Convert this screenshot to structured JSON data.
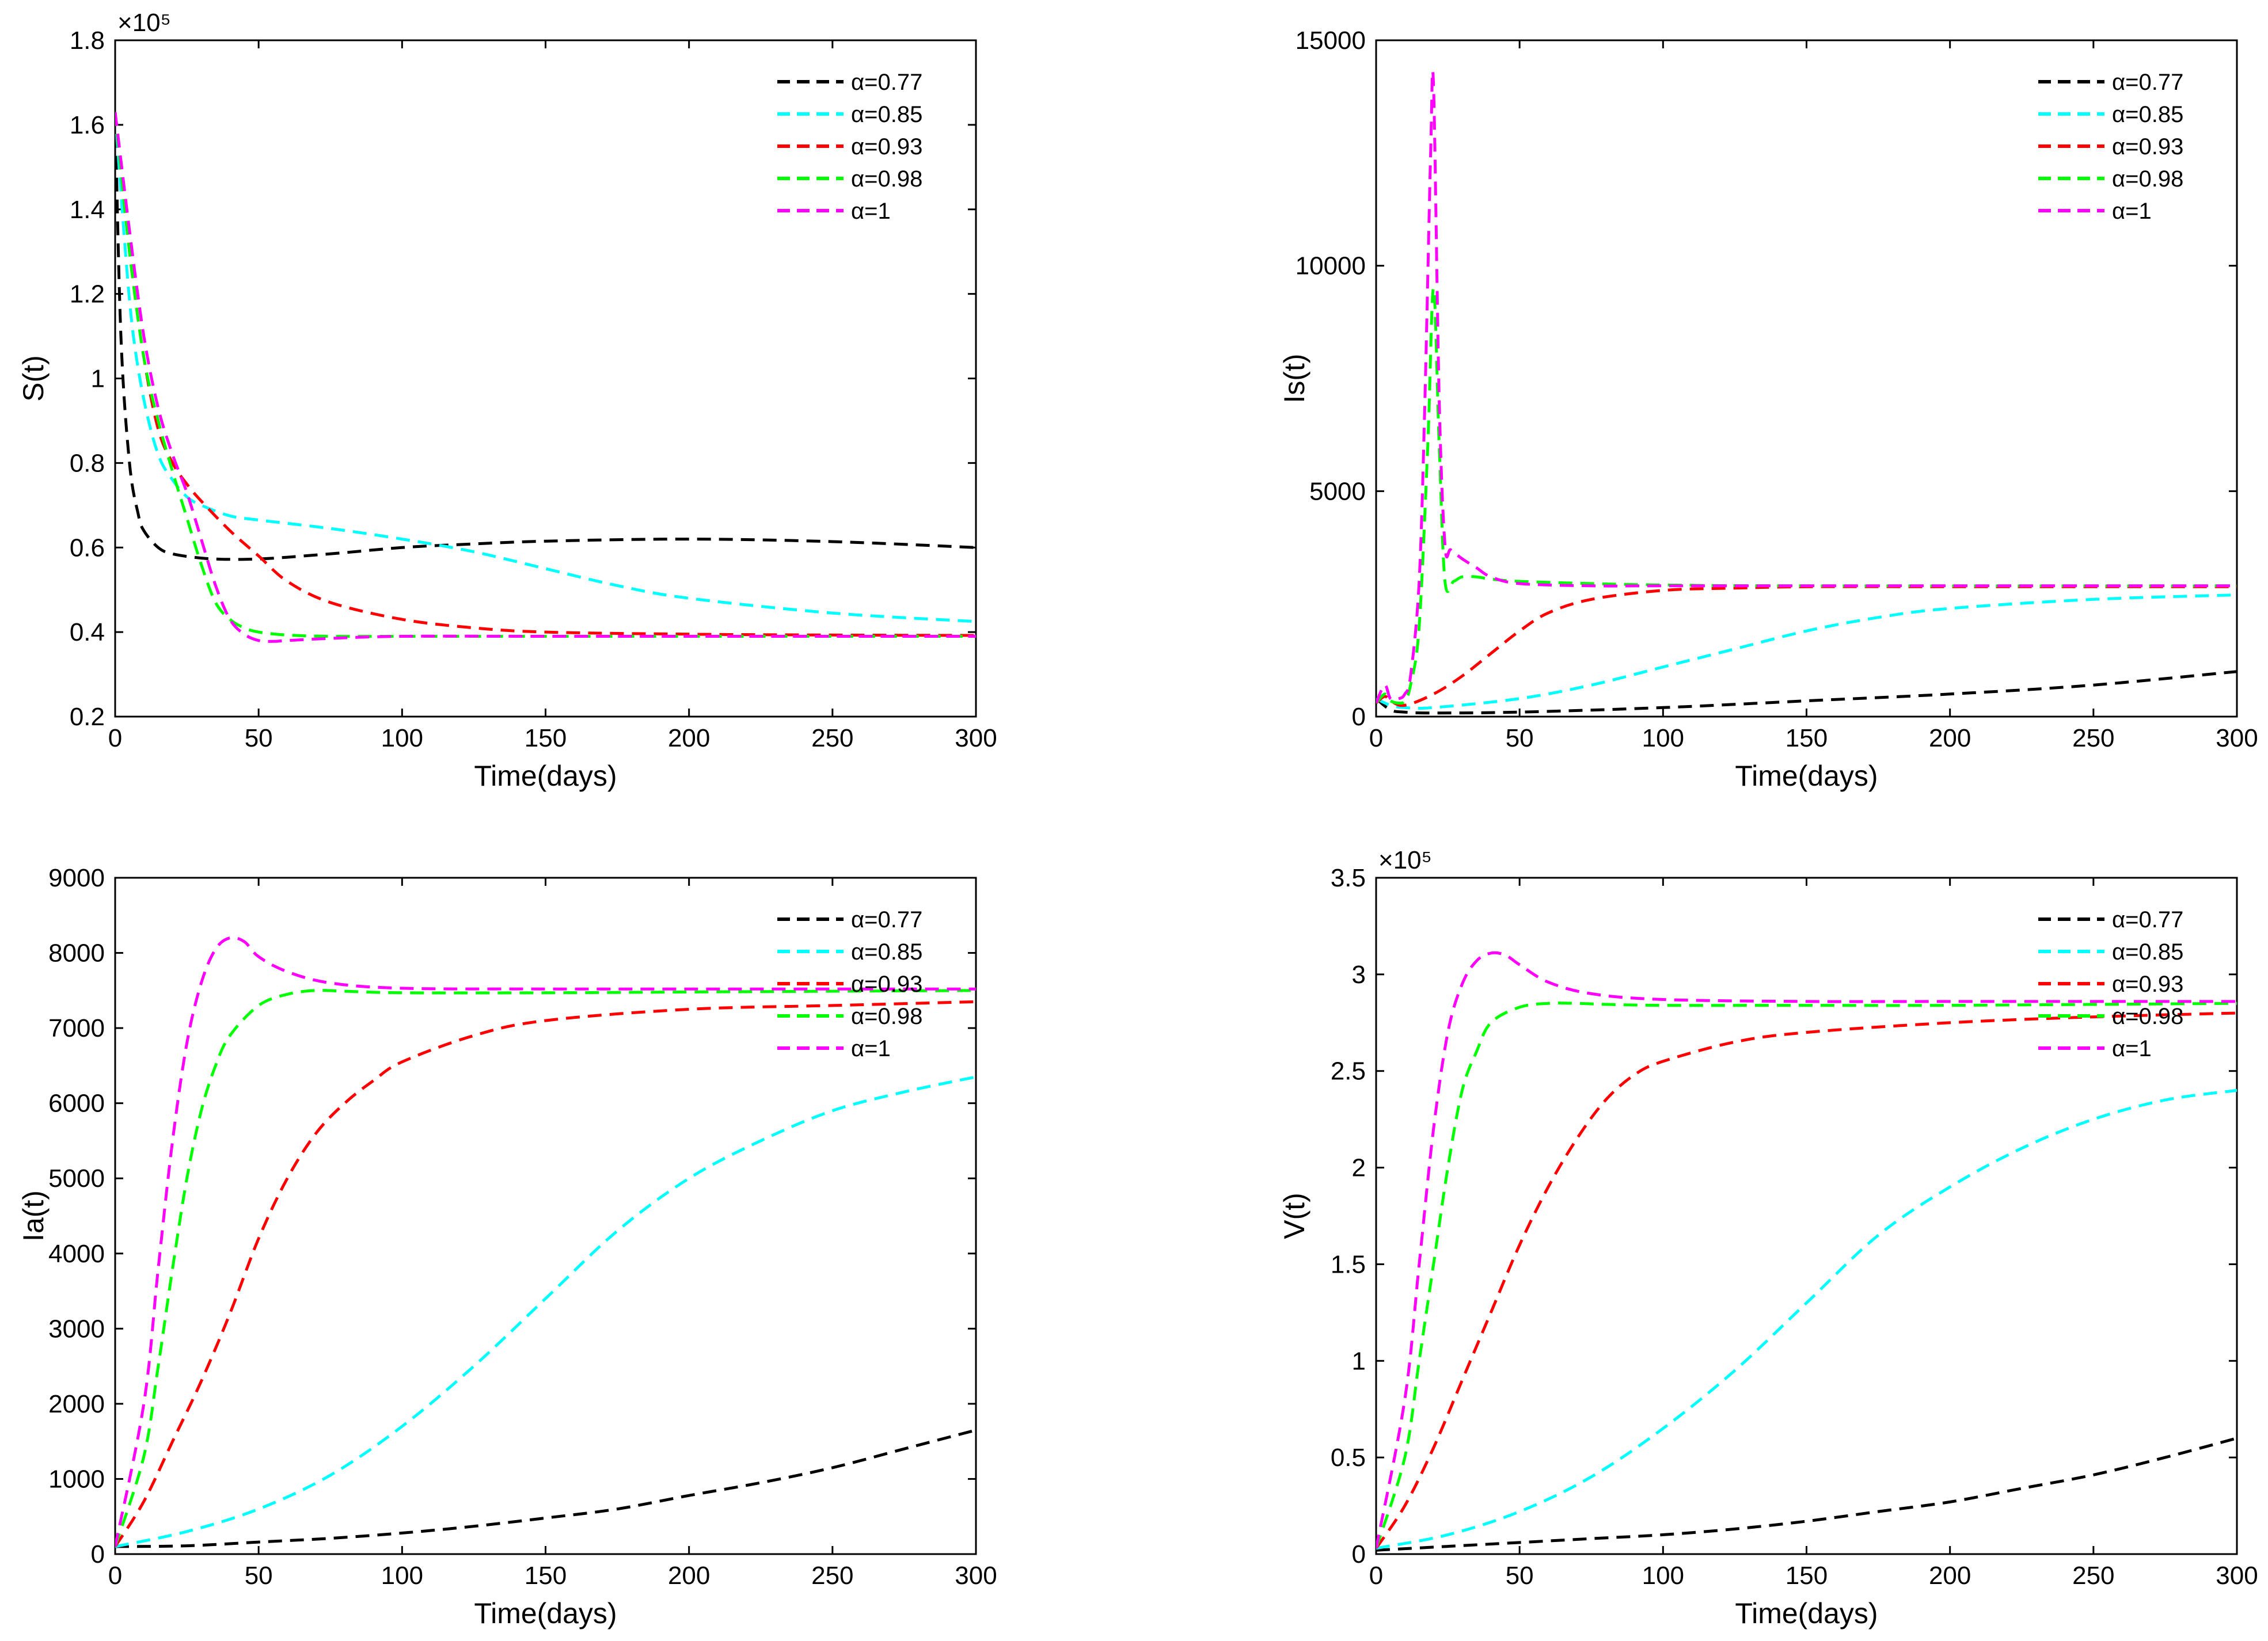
{
  "legend_alpha_symbol": "α",
  "chart_data": [
    {
      "type": "line",
      "name": "S",
      "xlabel": "Time(days)",
      "ylabel": "S(t)",
      "exponent_label": "×10⁵",
      "xlim": [
        0,
        300
      ],
      "ylim": [
        0.2,
        1.8
      ],
      "x_ticks": [
        0,
        50,
        100,
        150,
        200,
        250,
        300
      ],
      "y_ticks": [
        0.2,
        0.4,
        0.6,
        0.8,
        1,
        1.2,
        1.4,
        1.6,
        1.8
      ],
      "y_tick_labels": [
        "0.2",
        "0.4",
        "0.6",
        "0.8",
        "1",
        "1.2",
        "1.4",
        "1.6",
        "1.8"
      ],
      "legend_position": "top-right",
      "series": [
        {
          "name": "α=0.77",
          "color": "#000000",
          "x": [
            0,
            2,
            5,
            8,
            10,
            15,
            20,
            30,
            40,
            50,
            60,
            80,
            100,
            120,
            150,
            200,
            250,
            300
          ],
          "y": [
            1.63,
            1.1,
            0.8,
            0.68,
            0.64,
            0.6,
            0.585,
            0.575,
            0.572,
            0.573,
            0.577,
            0.588,
            0.6,
            0.607,
            0.615,
            0.62,
            0.614,
            0.6
          ]
        },
        {
          "name": "α=0.85",
          "color": "#00FFFF",
          "x": [
            0,
            3,
            6,
            10,
            15,
            20,
            25,
            30,
            40,
            50,
            75,
            100,
            125,
            150,
            175,
            200,
            250,
            300
          ],
          "y": [
            1.63,
            1.35,
            1.12,
            0.95,
            0.82,
            0.76,
            0.72,
            0.7,
            0.675,
            0.665,
            0.645,
            0.62,
            0.59,
            0.55,
            0.51,
            0.48,
            0.445,
            0.425
          ]
        },
        {
          "name": "α=0.93",
          "color": "#FF0000",
          "x": [
            0,
            5,
            10,
            15,
            20,
            25,
            30,
            40,
            50,
            60,
            75,
            100,
            125,
            150,
            200,
            250,
            300
          ],
          "y": [
            1.63,
            1.3,
            1.05,
            0.88,
            0.8,
            0.75,
            0.71,
            0.64,
            0.58,
            0.52,
            0.47,
            0.43,
            0.41,
            0.4,
            0.395,
            0.393,
            0.392
          ]
        },
        {
          "name": "α=0.98",
          "color": "#00FF00",
          "x": [
            0,
            5,
            10,
            15,
            20,
            25,
            30,
            35,
            40,
            45,
            50,
            60,
            75,
            100,
            150,
            200,
            300
          ],
          "y": [
            1.63,
            1.3,
            1.05,
            0.9,
            0.78,
            0.67,
            0.56,
            0.47,
            0.43,
            0.41,
            0.4,
            0.393,
            0.39,
            0.39,
            0.39,
            0.39,
            0.39
          ]
        },
        {
          "name": "α=1",
          "color": "#FF00FF",
          "x": [
            0,
            5,
            10,
            15,
            20,
            25,
            30,
            35,
            40,
            45,
            50,
            55,
            60,
            75,
            100,
            150,
            200,
            300
          ],
          "y": [
            1.63,
            1.35,
            1.1,
            0.93,
            0.82,
            0.73,
            0.62,
            0.51,
            0.43,
            0.395,
            0.38,
            0.378,
            0.38,
            0.385,
            0.39,
            0.39,
            0.39,
            0.39
          ]
        }
      ]
    },
    {
      "type": "line",
      "name": "Is",
      "xlabel": "Time(days)",
      "ylabel": "Is(t)",
      "exponent_label": "",
      "xlim": [
        0,
        300
      ],
      "ylim": [
        0,
        15000
      ],
      "x_ticks": [
        0,
        50,
        100,
        150,
        200,
        250,
        300
      ],
      "y_ticks": [
        0,
        5000,
        10000,
        15000
      ],
      "y_tick_labels": [
        "0",
        "5000",
        "10000",
        "15000"
      ],
      "legend_position": "top-right",
      "series": [
        {
          "name": "α=0.77",
          "color": "#000000",
          "x": [
            0,
            5,
            10,
            20,
            50,
            100,
            150,
            200,
            250,
            300
          ],
          "y": [
            400,
            150,
            100,
            80,
            100,
            200,
            350,
            500,
            700,
            1000
          ]
        },
        {
          "name": "α=0.85",
          "color": "#00FFFF",
          "x": [
            0,
            5,
            10,
            20,
            50,
            75,
            100,
            125,
            150,
            175,
            200,
            250,
            300
          ],
          "y": [
            400,
            250,
            200,
            200,
            400,
            700,
            1100,
            1500,
            1900,
            2200,
            2400,
            2600,
            2700
          ]
        },
        {
          "name": "α=0.93",
          "color": "#FF0000",
          "x": [
            0,
            3,
            5,
            10,
            20,
            30,
            40,
            50,
            60,
            75,
            100,
            125,
            150,
            200,
            300
          ],
          "y": [
            300,
            450,
            350,
            250,
            500,
            900,
            1400,
            1900,
            2300,
            2600,
            2800,
            2850,
            2880,
            2880,
            2880
          ]
        },
        {
          "name": "α=0.98",
          "color": "#00FF00",
          "x": [
            0,
            3,
            5,
            8,
            10,
            12,
            15,
            18,
            20,
            22,
            24,
            27,
            30,
            35,
            40,
            50,
            75,
            100,
            150,
            300
          ],
          "y": [
            300,
            500,
            350,
            300,
            350,
            700,
            2000,
            6000,
            9500,
            6000,
            3000,
            3000,
            3100,
            3100,
            3050,
            3000,
            2950,
            2920,
            2900,
            2900
          ]
        },
        {
          "name": "α=1",
          "color": "#FF00FF",
          "x": [
            0,
            3,
            5,
            8,
            10,
            12,
            15,
            17,
            19,
            20,
            22,
            24,
            26,
            30,
            35,
            40,
            50,
            75,
            100,
            150,
            300
          ],
          "y": [
            300,
            700,
            400,
            400,
            500,
            900,
            3000,
            7000,
            12500,
            14000,
            7000,
            3800,
            3700,
            3500,
            3300,
            3100,
            2950,
            2900,
            2900,
            2900,
            2900
          ]
        }
      ]
    },
    {
      "type": "line",
      "name": "Ia",
      "xlabel": "Time(days)",
      "ylabel": "Ia(t)",
      "exponent_label": "",
      "xlim": [
        0,
        300
      ],
      "ylim": [
        0,
        9000
      ],
      "x_ticks": [
        0,
        50,
        100,
        150,
        200,
        250,
        300
      ],
      "y_ticks": [
        0,
        1000,
        2000,
        3000,
        4000,
        5000,
        6000,
        7000,
        8000,
        9000
      ],
      "y_tick_labels": [
        "0",
        "1000",
        "2000",
        "3000",
        "4000",
        "5000",
        "6000",
        "7000",
        "8000",
        "9000"
      ],
      "legend_position": "top-right",
      "series": [
        {
          "name": "α=0.77",
          "color": "#000000",
          "x": [
            0,
            25,
            50,
            75,
            100,
            125,
            150,
            175,
            200,
            225,
            250,
            275,
            300
          ],
          "y": [
            100,
            110,
            160,
            210,
            280,
            370,
            480,
            600,
            780,
            950,
            1150,
            1400,
            1650
          ]
        },
        {
          "name": "α=0.85",
          "color": "#00FFFF",
          "x": [
            0,
            25,
            50,
            75,
            100,
            125,
            150,
            175,
            200,
            225,
            250,
            275,
            300
          ],
          "y": [
            100,
            300,
            600,
            1050,
            1700,
            2500,
            3400,
            4300,
            5000,
            5500,
            5900,
            6150,
            6350
          ]
        },
        {
          "name": "α=0.93",
          "color": "#FF0000",
          "x": [
            0,
            10,
            20,
            30,
            40,
            50,
            60,
            70,
            80,
            90,
            100,
            125,
            150,
            200,
            250,
            300
          ],
          "y": [
            100,
            700,
            1500,
            2300,
            3200,
            4200,
            5000,
            5600,
            6000,
            6300,
            6550,
            6900,
            7100,
            7250,
            7300,
            7350
          ]
        },
        {
          "name": "α=0.98",
          "color": "#00FF00",
          "x": [
            0,
            10,
            15,
            20,
            25,
            30,
            35,
            40,
            50,
            60,
            70,
            80,
            100,
            150,
            200,
            250,
            300
          ],
          "y": [
            100,
            1300,
            2500,
            3800,
            5000,
            5900,
            6500,
            6900,
            7300,
            7450,
            7500,
            7490,
            7470,
            7470,
            7480,
            7490,
            7500
          ]
        },
        {
          "name": "α=1",
          "color": "#FF00FF",
          "x": [
            0,
            10,
            15,
            20,
            25,
            30,
            35,
            40,
            45,
            50,
            60,
            75,
            100,
            150,
            200,
            300
          ],
          "y": [
            100,
            2000,
            3800,
            5500,
            6800,
            7600,
            8050,
            8200,
            8150,
            7950,
            7750,
            7600,
            7530,
            7520,
            7520,
            7520
          ]
        }
      ]
    },
    {
      "type": "line",
      "name": "V",
      "xlabel": "Time(days)",
      "ylabel": "V(t)",
      "exponent_label": "×10⁵",
      "xlim": [
        0,
        300
      ],
      "ylim": [
        0,
        3.5
      ],
      "x_ticks": [
        0,
        50,
        100,
        150,
        200,
        250,
        300
      ],
      "y_ticks": [
        0,
        0.5,
        1,
        1.5,
        2,
        2.5,
        3,
        3.5
      ],
      "y_tick_labels": [
        "0",
        "0.5",
        "1",
        "1.5",
        "2",
        "2.5",
        "3",
        "3.5"
      ],
      "legend_position": "top-right",
      "series": [
        {
          "name": "α=0.77",
          "color": "#000000",
          "x": [
            0,
            25,
            50,
            75,
            100,
            125,
            150,
            175,
            200,
            225,
            250,
            275,
            300
          ],
          "y": [
            0.02,
            0.04,
            0.06,
            0.08,
            0.1,
            0.13,
            0.17,
            0.22,
            0.27,
            0.34,
            0.41,
            0.5,
            0.6
          ]
        },
        {
          "name": "α=0.85",
          "color": "#00FFFF",
          "x": [
            0,
            25,
            50,
            75,
            100,
            125,
            150,
            175,
            200,
            225,
            250,
            275,
            300
          ],
          "y": [
            0.03,
            0.1,
            0.22,
            0.4,
            0.65,
            0.95,
            1.3,
            1.65,
            1.9,
            2.1,
            2.25,
            2.35,
            2.4
          ]
        },
        {
          "name": "α=0.93",
          "color": "#FF0000",
          "x": [
            0,
            10,
            20,
            30,
            40,
            50,
            60,
            70,
            80,
            90,
            100,
            125,
            150,
            200,
            250,
            300
          ],
          "y": [
            0.03,
            0.25,
            0.55,
            0.9,
            1.25,
            1.6,
            1.9,
            2.15,
            2.35,
            2.48,
            2.55,
            2.65,
            2.7,
            2.75,
            2.78,
            2.8
          ]
        },
        {
          "name": "α=0.98",
          "color": "#00FF00",
          "x": [
            0,
            10,
            15,
            20,
            25,
            30,
            35,
            40,
            50,
            60,
            70,
            80,
            100,
            150,
            200,
            300
          ],
          "y": [
            0.03,
            0.5,
            1,
            1.5,
            2,
            2.4,
            2.6,
            2.75,
            2.83,
            2.85,
            2.85,
            2.845,
            2.84,
            2.84,
            2.84,
            2.85
          ]
        },
        {
          "name": "α=1",
          "color": "#FF00FF",
          "x": [
            0,
            10,
            15,
            20,
            25,
            30,
            35,
            40,
            45,
            50,
            60,
            75,
            100,
            150,
            200,
            300
          ],
          "y": [
            0.03,
            0.8,
            1.5,
            2.2,
            2.7,
            2.95,
            3.07,
            3.11,
            3.1,
            3.05,
            2.96,
            2.9,
            2.87,
            2.86,
            2.86,
            2.86
          ]
        }
      ]
    }
  ]
}
